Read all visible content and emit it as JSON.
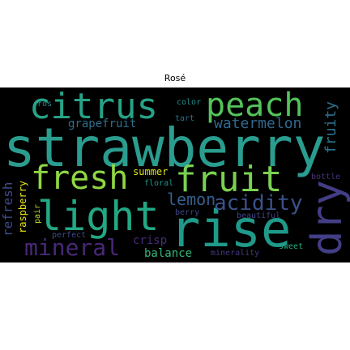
{
  "title": "Rosé",
  "words": [
    {
      "text": "strawberry",
      "color": "#2a9d8f"
    },
    {
      "text": "citrus",
      "color": "#26a386"
    },
    {
      "text": "peach",
      "color": "#54c35a"
    },
    {
      "text": "fresh",
      "color": "#8fd744"
    },
    {
      "text": "fruit",
      "color": "#7ad151"
    },
    {
      "text": "light",
      "color": "#22a884"
    },
    {
      "text": "rise",
      "color": "#1f9a8a"
    },
    {
      "text": "dry",
      "color": "#433e85"
    },
    {
      "text": "mineral",
      "color": "#482878"
    },
    {
      "text": "acidity",
      "color": "#3b528b"
    },
    {
      "text": "lemon",
      "color": "#355f8d"
    },
    {
      "text": "watermelon",
      "color": "#31688e"
    },
    {
      "text": "grapefruit",
      "color": "#2e6f8e"
    },
    {
      "text": "fruity",
      "color": "#2c728e"
    },
    {
      "text": "refresh",
      "color": "#3e4a89"
    },
    {
      "text": "raspberry",
      "color": "#e7e419"
    },
    {
      "text": "summer",
      "color": "#dde318"
    },
    {
      "text": "crisp",
      "color": "#472c7a"
    },
    {
      "text": "balance",
      "color": "#35b779"
    },
    {
      "text": "color",
      "color": "#21918c"
    },
    {
      "text": "tart",
      "color": "#2d708e"
    },
    {
      "text": "ros",
      "color": "#238a8d"
    },
    {
      "text": "floral",
      "color": "#1f968b"
    },
    {
      "text": "berry",
      "color": "#3f4788"
    },
    {
      "text": "beautiful",
      "color": "#414487"
    },
    {
      "text": "bottle",
      "color": "#46317e"
    },
    {
      "text": "sweet",
      "color": "#25ac82"
    },
    {
      "text": "minerality",
      "color": "#453781"
    },
    {
      "text": "perfect",
      "color": "#3d4e8a"
    },
    {
      "text": "pair",
      "color": "#b5de2b"
    }
  ]
}
